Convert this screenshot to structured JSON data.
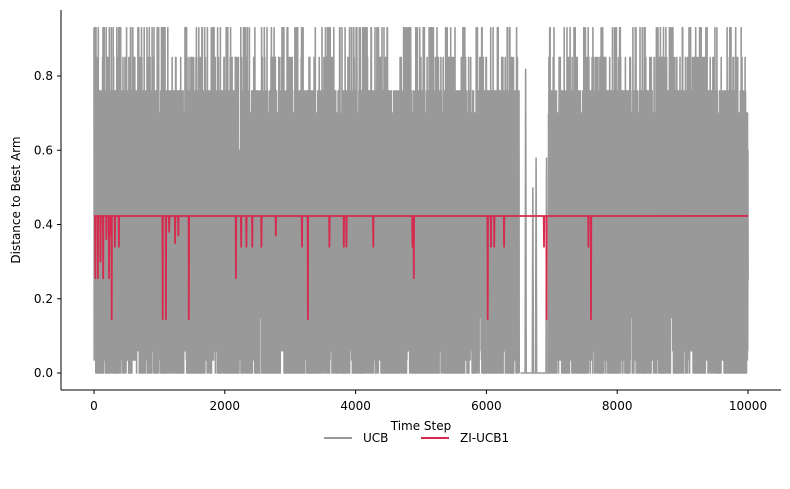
{
  "chart_data": {
    "type": "line",
    "xlabel": "Time Step",
    "ylabel": "Distance to Best Arm",
    "xlim": [
      -500,
      10500
    ],
    "ylim": [
      -0.045,
      0.98
    ],
    "xticks": [
      0,
      2000,
      4000,
      6000,
      8000,
      10000
    ],
    "xtick_labels": [
      "0",
      "2000",
      "4000",
      "6000",
      "8000",
      "10000"
    ],
    "yticks": [
      0.0,
      0.2,
      0.4,
      0.6,
      0.8
    ],
    "ytick_labels": [
      "0.0",
      "0.2",
      "0.4",
      "0.6",
      "0.8"
    ],
    "legend_position": "bottom-center",
    "grid": false,
    "series": [
      {
        "name": "UCB",
        "color": "#999999",
        "x_range": [
          0,
          10000
        ],
        "levels": [
          0.0,
          0.035,
          0.06,
          0.15,
          0.25,
          0.42,
          0.6,
          0.7,
          0.76,
          0.85,
          0.93
        ],
        "dense_oscillation_ranges": [
          [
            0,
            6500
          ],
          [
            6950,
            10000
          ]
        ],
        "flat_segments": [
          {
            "x": [
              6520,
              6950
            ],
            "y": 0.0
          }
        ],
        "sparse_spikes": [
          {
            "x": 6600,
            "y": 0.82
          },
          {
            "x": 6710,
            "y": 0.5
          },
          {
            "x": 6760,
            "y": 0.58
          },
          {
            "x": 6920,
            "y": 0.58
          }
        ]
      },
      {
        "name": "ZI-UCB1",
        "color": "#d62a4e",
        "baseline": 0.423,
        "x_range": [
          0,
          10000
        ],
        "dips": [
          {
            "x": 20,
            "y": 0.255
          },
          {
            "x": 60,
            "y": 0.255
          },
          {
            "x": 100,
            "y": 0.3
          },
          {
            "x": 140,
            "y": 0.255
          },
          {
            "x": 190,
            "y": 0.36
          },
          {
            "x": 230,
            "y": 0.255
          },
          {
            "x": 250,
            "y": 0.37
          },
          {
            "x": 270,
            "y": 0.145
          },
          {
            "x": 320,
            "y": 0.34
          },
          {
            "x": 380,
            "y": 0.34
          },
          {
            "x": 1050,
            "y": 0.145
          },
          {
            "x": 1100,
            "y": 0.145
          },
          {
            "x": 1150,
            "y": 0.38
          },
          {
            "x": 1240,
            "y": 0.35
          },
          {
            "x": 1290,
            "y": 0.37
          },
          {
            "x": 1450,
            "y": 0.145
          },
          {
            "x": 2170,
            "y": 0.255
          },
          {
            "x": 2250,
            "y": 0.34
          },
          {
            "x": 2330,
            "y": 0.34
          },
          {
            "x": 2420,
            "y": 0.34
          },
          {
            "x": 2560,
            "y": 0.34
          },
          {
            "x": 2780,
            "y": 0.37
          },
          {
            "x": 3180,
            "y": 0.34
          },
          {
            "x": 3270,
            "y": 0.145
          },
          {
            "x": 3600,
            "y": 0.34
          },
          {
            "x": 3820,
            "y": 0.34
          },
          {
            "x": 3860,
            "y": 0.34
          },
          {
            "x": 4270,
            "y": 0.34
          },
          {
            "x": 4870,
            "y": 0.34
          },
          {
            "x": 4890,
            "y": 0.255
          },
          {
            "x": 6020,
            "y": 0.145
          },
          {
            "x": 6070,
            "y": 0.34
          },
          {
            "x": 6120,
            "y": 0.34
          },
          {
            "x": 6270,
            "y": 0.34
          },
          {
            "x": 6880,
            "y": 0.34
          },
          {
            "x": 6920,
            "y": 0.145
          },
          {
            "x": 7560,
            "y": 0.34
          },
          {
            "x": 7600,
            "y": 0.145
          }
        ]
      }
    ]
  }
}
